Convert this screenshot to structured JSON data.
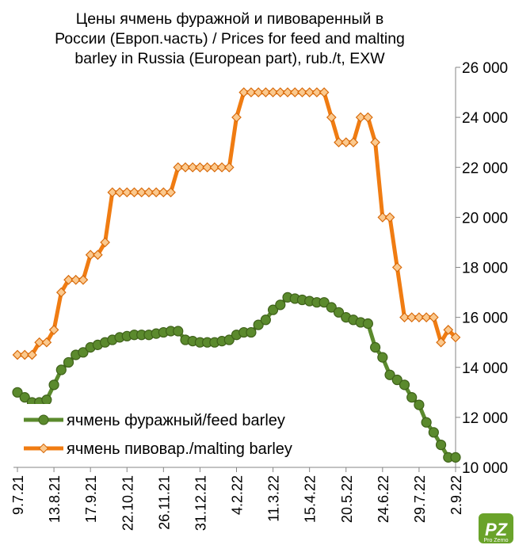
{
  "chart_data": {
    "type": "line",
    "title": [
      "Цены ячмень фуражной и пивоваренный в",
      "России (Европ.часть) / Prices for feed and malting",
      "barley in Russia (European part), rub./t, EXW"
    ],
    "categories": [
      "9.7.21",
      null,
      null,
      null,
      null,
      "13.8.21",
      null,
      null,
      null,
      null,
      "17.9.21",
      null,
      null,
      null,
      null,
      "22.10.21",
      null,
      null,
      null,
      null,
      "26.11.21",
      null,
      null,
      null,
      null,
      "31.12.21",
      null,
      null,
      null,
      null,
      "4.2.22",
      null,
      null,
      null,
      null,
      "11.3.22",
      null,
      null,
      null,
      null,
      "15.4.22",
      null,
      null,
      null,
      null,
      "20.5.22",
      null,
      null,
      null,
      null,
      "24.6.22",
      null,
      null,
      null,
      null,
      "29.7.22",
      null,
      null,
      null,
      null,
      "2.9.22"
    ],
    "series": [
      {
        "name": "ячмень фуражный/feed barley",
        "color": "#5b8a2d",
        "marker": "circle",
        "values": [
          13000,
          12800,
          12600,
          12600,
          12700,
          13300,
          13900,
          14200,
          14500,
          14600,
          14800,
          14900,
          15000,
          15100,
          15200,
          15250,
          15300,
          15300,
          15300,
          15350,
          15400,
          15450,
          15450,
          15100,
          15050,
          15000,
          15000,
          15000,
          15050,
          15100,
          15300,
          15400,
          15400,
          15700,
          15900,
          16300,
          16500,
          16800,
          16750,
          16700,
          16650,
          16600,
          16600,
          16400,
          16200,
          16000,
          15900,
          15800,
          15750,
          14800,
          14400,
          13700,
          13500,
          13300,
          12800,
          12500,
          11800,
          11400,
          10900,
          10400,
          10400
        ]
      },
      {
        "name": "ячмень пивовар./malting barley",
        "color": "#f07c12",
        "marker": "diamond",
        "values": [
          14500,
          14500,
          14500,
          15000,
          15000,
          15500,
          17000,
          17500,
          17500,
          17500,
          18500,
          18500,
          19000,
          21000,
          21000,
          21000,
          21000,
          21000,
          21000,
          21000,
          21000,
          21000,
          22000,
          22000,
          22000,
          22000,
          22000,
          22000,
          22000,
          22000,
          24000,
          25000,
          25000,
          25000,
          25000,
          25000,
          25000,
          25000,
          25000,
          25000,
          25000,
          25000,
          25000,
          24000,
          23000,
          23000,
          23000,
          24000,
          24000,
          23000,
          20000,
          20000,
          18000,
          16000,
          16000,
          16000,
          16000,
          16000,
          15000,
          15500,
          15200
        ]
      }
    ],
    "ylim": [
      10000,
      26000
    ],
    "yticks": [
      {
        "value": 10000,
        "label": "10 000"
      },
      {
        "value": 12000,
        "label": "12 000"
      },
      {
        "value": 14000,
        "label": "14 000"
      },
      {
        "value": 16000,
        "label": "16 000"
      },
      {
        "value": 18000,
        "label": "18 000"
      },
      {
        "value": 20000,
        "label": "20 000"
      },
      {
        "value": 22000,
        "label": "22 000"
      },
      {
        "value": 24000,
        "label": "24 000"
      },
      {
        "value": 26000,
        "label": "26 000"
      }
    ],
    "yaxis_side": "right",
    "legend": "lower left",
    "grid": false,
    "logo": "Pro Zerno"
  }
}
